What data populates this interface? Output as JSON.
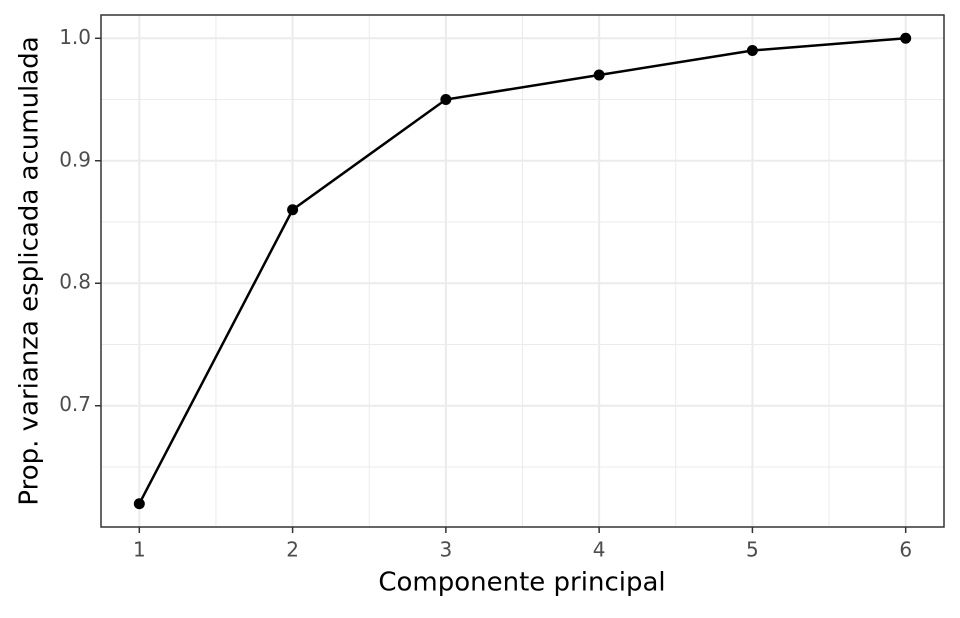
{
  "chart_data": {
    "type": "line",
    "x_label": "Componente principal",
    "y_label": "Prop. varianza esplicada acumulada",
    "x": [
      1,
      2,
      3,
      4,
      5,
      6
    ],
    "series": [
      {
        "color": "#000000",
        "values": [
          0.62,
          0.86,
          0.95,
          0.97,
          0.99,
          1.0
        ]
      }
    ],
    "xlim": [
      0.75,
      6.25
    ],
    "xticks": [
      1,
      2,
      3,
      4,
      5,
      6
    ],
    "minor_xticks": [
      1.5,
      2.5,
      3.5,
      4.5,
      5.5
    ],
    "ylim": [
      0.601,
      1.019
    ],
    "yticks": [
      0.7,
      0.8,
      0.9,
      {
        "value": 1.0,
        "label": "1.0"
      }
    ],
    "minor_yticks": [
      0.65,
      0.75,
      0.85,
      0.95
    ],
    "grid": true
  }
}
